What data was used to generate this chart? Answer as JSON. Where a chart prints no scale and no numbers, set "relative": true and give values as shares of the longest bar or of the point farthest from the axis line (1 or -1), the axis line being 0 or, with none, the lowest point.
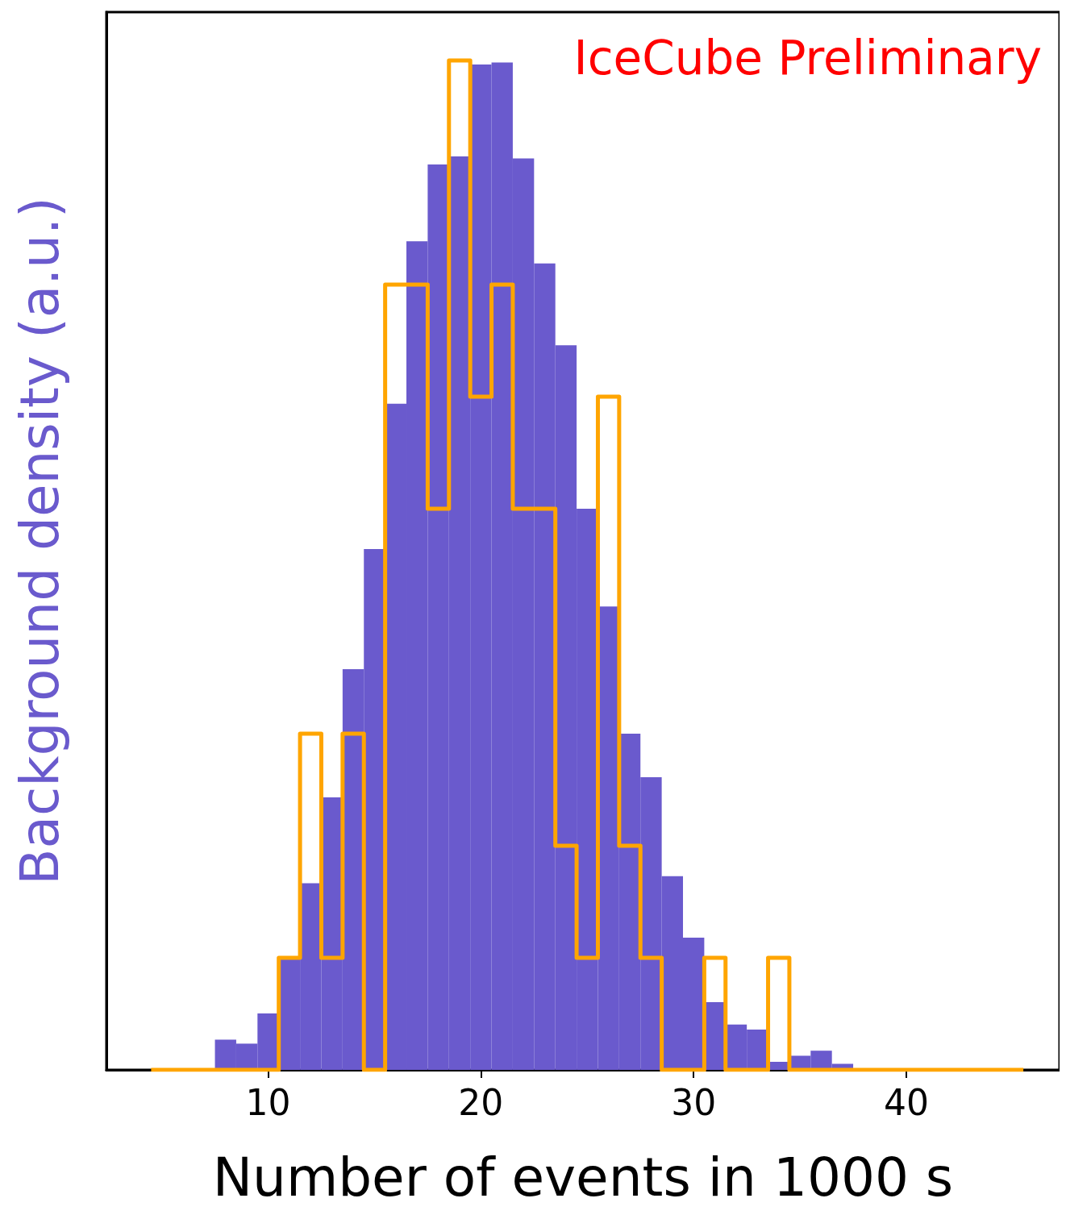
{
  "chart_data": {
    "type": "histogram",
    "relative": true,
    "xlabel": "Number of events in 1000 s",
    "ylabel": "Background density (a.u.)",
    "annotations": [
      "IceCube Preliminary"
    ],
    "xlim": [
      2.4,
      47.2
    ],
    "xticks": [
      10,
      20,
      30,
      40
    ],
    "series": [
      {
        "color": "#6a5acd",
        "bins": [
          6.5,
          7.5,
          8.5,
          9.5,
          10.5,
          11.5,
          12.5,
          13.5,
          14.5,
          15.5,
          16.5,
          17.5,
          18.5,
          19.5,
          20.5,
          21.5,
          22.5,
          23.5,
          24.5,
          25.5,
          26.5,
          27.5,
          28.5,
          29.5,
          30.5,
          31.5,
          32.5,
          33.5,
          34.5,
          35.5,
          36.5,
          37.5,
          38.5
        ],
        "values": [
          null,
          0.03,
          0.026,
          0.056,
          0.111,
          0.185,
          0.27,
          0.397,
          0.516,
          0.66,
          0.821,
          0.897,
          0.905,
          0.996,
          0.998,
          0.903,
          0.799,
          0.718,
          0.556,
          0.459,
          0.333,
          0.29,
          0.192,
          0.131,
          0.067,
          0.045,
          0.04,
          0.008,
          0.014,
          0.019,
          0.006,
          null
        ]
      },
      {
        "type": "step",
        "color": "#ffa500",
        "x": [
          4.5,
          10.5,
          11.5,
          12.5,
          13.5,
          14.5,
          15.5,
          17.5,
          18.5,
          19.5,
          20.5,
          21.5,
          23.5,
          24.5,
          25.5,
          26.5,
          27.5,
          28.5,
          30.5,
          31.5,
          33.5,
          34.5,
          45.5
        ],
        "values": [
          0,
          0.111,
          0.333,
          0.111,
          0.333,
          0,
          0.778,
          0.556,
          1,
          0.667,
          0.778,
          0.556,
          0.222,
          0.111,
          0.667,
          0.222,
          0.111,
          0,
          0.111,
          0,
          0.111,
          0,
          0
        ]
      }
    ]
  }
}
